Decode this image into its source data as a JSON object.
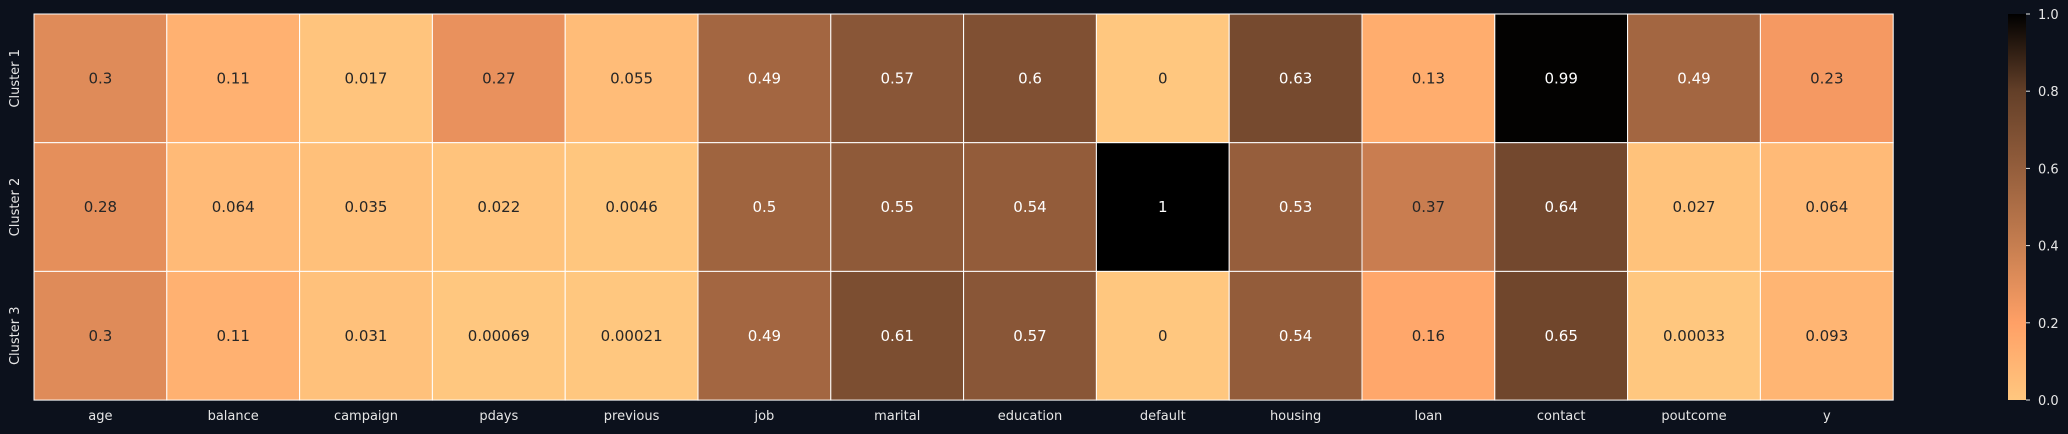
{
  "chart_data": {
    "type": "heatmap",
    "title": "",
    "xlabel": "",
    "ylabel": "",
    "columns": [
      "age",
      "balance",
      "campaign",
      "pdays",
      "previous",
      "job",
      "marital",
      "education",
      "default",
      "housing",
      "loan",
      "contact",
      "poutcome",
      "y"
    ],
    "rows": [
      "Cluster 1",
      "Cluster 2",
      "Cluster 3"
    ],
    "values": [
      [
        0.3,
        0.11,
        0.017,
        0.27,
        0.055,
        0.49,
        0.57,
        0.6,
        0,
        0.63,
        0.13,
        0.99,
        0.49,
        0.23
      ],
      [
        0.28,
        0.064,
        0.035,
        0.022,
        0.0046,
        0.5,
        0.55,
        0.54,
        1,
        0.53,
        0.37,
        0.64,
        0.027,
        0.064
      ],
      [
        0.3,
        0.11,
        0.031,
        0.00069,
        0.00021,
        0.49,
        0.61,
        0.57,
        0,
        0.54,
        0.16,
        0.65,
        0.00033,
        0.093
      ]
    ],
    "colorbar": {
      "range": [
        0,
        1
      ],
      "ticks": [
        "0.0",
        "0.2",
        "0.4",
        "0.6",
        "0.8",
        "1.0"
      ],
      "colormap": "copper_r"
    },
    "colors": {
      "background": "#0c111c",
      "grid_line": "#ffffff",
      "tick_text": "#e6e6e6",
      "text_dark": "#262626",
      "text_light": "#ffffff"
    }
  }
}
